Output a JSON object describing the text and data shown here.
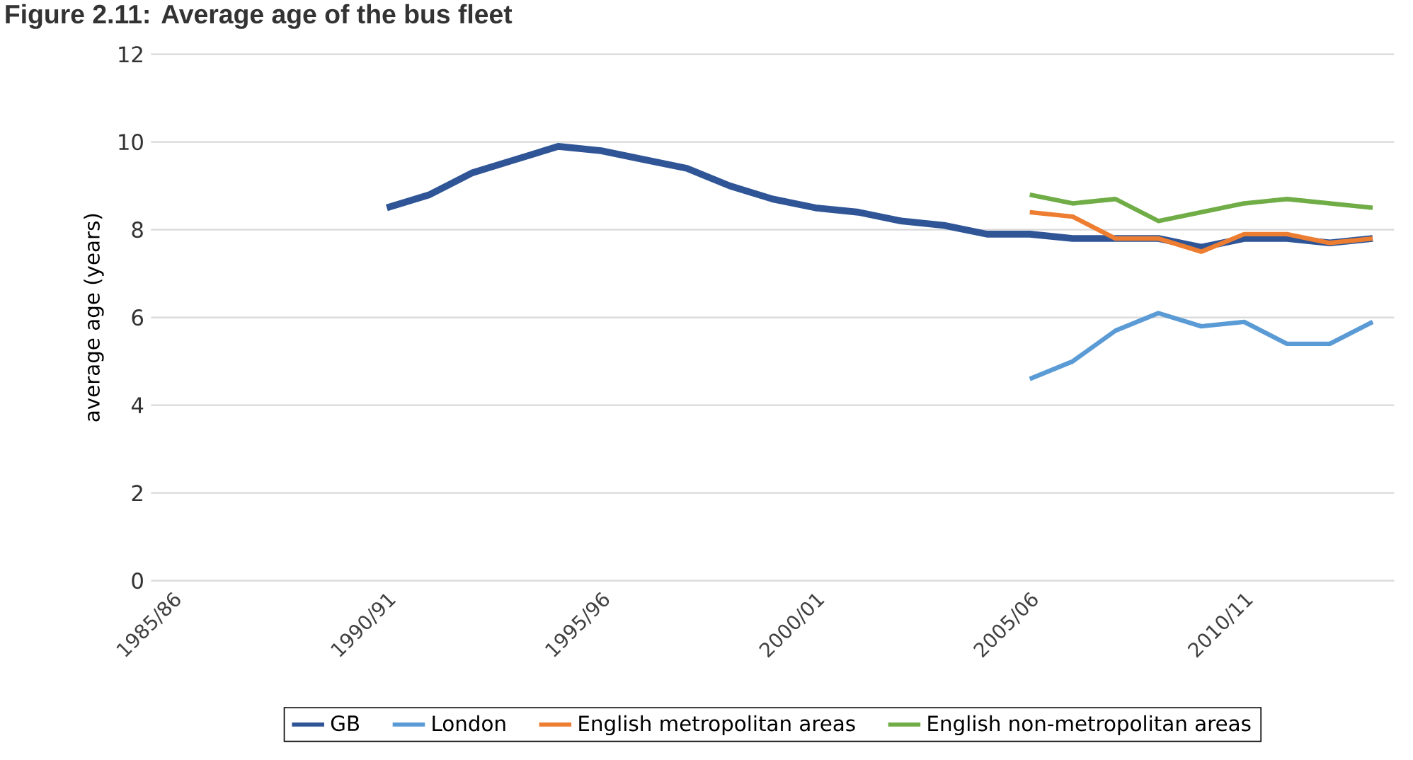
{
  "chart_data": {
    "type": "line",
    "title": "Figure 2.11: Average age of the bus fleet",
    "ylabel": "average age (years)",
    "categories": [
      "1985/86",
      null,
      null,
      null,
      null,
      "1990/91",
      null,
      null,
      null,
      null,
      "1995/96",
      null,
      null,
      null,
      null,
      "2000/01",
      null,
      null,
      null,
      null,
      "2005/06",
      null,
      null,
      null,
      null,
      "2010/11",
      null,
      null,
      null
    ],
    "series": [
      {
        "name": "GB",
        "color": "#2f5597",
        "values": [
          null,
          null,
          null,
          null,
          null,
          8.5,
          8.8,
          9.3,
          9.6,
          9.9,
          9.8,
          9.6,
          9.4,
          9.0,
          8.7,
          8.5,
          8.4,
          8.2,
          8.1,
          7.9,
          7.9,
          7.8,
          7.8,
          7.8,
          7.6,
          7.8,
          7.8,
          7.7,
          7.8
        ]
      },
      {
        "name": "London",
        "color": "#5b9bd5",
        "values": [
          null,
          null,
          null,
          null,
          null,
          null,
          null,
          null,
          null,
          null,
          null,
          null,
          null,
          null,
          null,
          null,
          null,
          null,
          null,
          null,
          4.6,
          5.0,
          5.7,
          6.1,
          5.8,
          5.9,
          5.4,
          5.4,
          5.9
        ]
      },
      {
        "name": "English metropolitan areas",
        "color": "#ed7d31",
        "values": [
          null,
          null,
          null,
          null,
          null,
          null,
          null,
          null,
          null,
          null,
          null,
          null,
          null,
          null,
          null,
          null,
          null,
          null,
          null,
          null,
          8.4,
          8.3,
          7.8,
          7.8,
          7.5,
          7.9,
          7.9,
          7.7,
          7.8
        ]
      },
      {
        "name": "English non-metropolitan areas",
        "color": "#70ad47",
        "values": [
          null,
          null,
          null,
          null,
          null,
          null,
          null,
          null,
          null,
          null,
          null,
          null,
          null,
          null,
          null,
          null,
          null,
          null,
          null,
          null,
          8.8,
          8.6,
          8.7,
          8.2,
          8.4,
          8.6,
          8.7,
          8.6,
          8.5
        ]
      }
    ],
    "ylim": [
      0,
      12
    ],
    "yticks": [
      0,
      2,
      4,
      6,
      8,
      10,
      12
    ],
    "grid": "y",
    "legend": "bottom",
    "line_style": "solid",
    "marker": "none"
  }
}
